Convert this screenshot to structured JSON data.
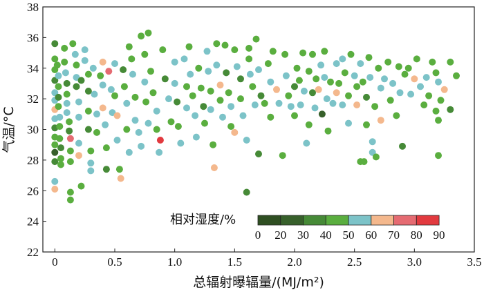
{
  "chart_data": {
    "type": "scatter",
    "xlabel": "总辐射曝辐量/(MJ/m²)",
    "ylabel": "气温/°C",
    "xlim": [
      -0.1,
      3.5
    ],
    "ylim": [
      22,
      38
    ],
    "xticks": [
      "0",
      "0.5",
      "1.0",
      "1.5",
      "2.0",
      "2.5",
      "3.0",
      "3.5"
    ],
    "xtick_values": [
      0,
      0.5,
      1.0,
      1.5,
      2.0,
      2.5,
      3.0,
      3.5
    ],
    "yticks": [
      "22",
      "24",
      "26",
      "28",
      "30",
      "32",
      "34",
      "36",
      "38"
    ],
    "ytick_values": [
      22,
      24,
      26,
      28,
      30,
      32,
      34,
      36,
      38
    ],
    "grid": false,
    "legend": {
      "title": "相对湿度/%",
      "position": "bottom-right",
      "boundaries": [
        "0",
        "20",
        "30",
        "40",
        "50",
        "60",
        "70",
        "80",
        "90"
      ],
      "colors": [
        "#2f4f22",
        "#37602b",
        "#468a37",
        "#5aae3f",
        "#7cc3c8",
        "#f4b88d",
        "#e56b72",
        "#e23a3f"
      ]
    },
    "class_colors": [
      "#2f4f22",
      "#37602b",
      "#468a37",
      "#5aae3f",
      "#7cc3c8",
      "#f4b88d",
      "#e56b72",
      "#e23a3f"
    ],
    "points": [
      [
        0.0,
        35.6,
        2
      ],
      [
        0.0,
        34.6,
        3
      ],
      [
        0.0,
        33.9,
        3
      ],
      [
        0.0,
        33.2,
        2
      ],
      [
        0.0,
        32.4,
        4
      ],
      [
        0.0,
        31.9,
        4
      ],
      [
        0.0,
        31.3,
        5
      ],
      [
        0.0,
        30.7,
        4
      ],
      [
        0.0,
        30.1,
        2
      ],
      [
        0.0,
        29.5,
        3
      ],
      [
        0.0,
        29.0,
        3
      ],
      [
        0.0,
        28.5,
        1
      ],
      [
        0.0,
        27.9,
        2
      ],
      [
        0.0,
        26.6,
        4
      ],
      [
        0.0,
        26.1,
        5
      ],
      [
        0.02,
        34.2,
        3
      ],
      [
        0.03,
        33.5,
        4
      ],
      [
        0.03,
        32.8,
        3
      ],
      [
        0.03,
        32.1,
        2
      ],
      [
        0.03,
        31.5,
        3
      ],
      [
        0.04,
        30.8,
        4
      ],
      [
        0.04,
        30.2,
        3
      ],
      [
        0.04,
        29.4,
        3
      ],
      [
        0.05,
        28.8,
        2
      ],
      [
        0.05,
        28.1,
        3
      ],
      [
        0.05,
        27.7,
        3
      ],
      [
        0.08,
        35.3,
        3
      ],
      [
        0.08,
        34.4,
        3
      ],
      [
        0.09,
        33.7,
        4
      ],
      [
        0.1,
        33.0,
        2
      ],
      [
        0.1,
        32.3,
        3
      ],
      [
        0.1,
        31.7,
        4
      ],
      [
        0.1,
        31.1,
        4
      ],
      [
        0.12,
        30.5,
        3
      ],
      [
        0.12,
        29.9,
        2
      ],
      [
        0.13,
        29.4,
        6
      ],
      [
        0.13,
        28.6,
        3
      ],
      [
        0.13,
        27.9,
        3
      ],
      [
        0.13,
        25.9,
        3
      ],
      [
        0.13,
        25.4,
        3
      ],
      [
        0.15,
        35.6,
        3
      ],
      [
        0.17,
        34.9,
        4
      ],
      [
        0.18,
        34.2,
        3
      ],
      [
        0.18,
        33.4,
        4
      ],
      [
        0.18,
        32.8,
        2
      ],
      [
        0.2,
        31.8,
        4
      ],
      [
        0.2,
        30.8,
        4
      ],
      [
        0.2,
        29.1,
        4
      ],
      [
        0.2,
        28.3,
        5
      ],
      [
        0.22,
        26.3,
        3
      ],
      [
        0.22,
        33.2,
        2
      ],
      [
        0.25,
        35.2,
        4
      ],
      [
        0.25,
        34.5,
        4
      ],
      [
        0.28,
        33.6,
        3
      ],
      [
        0.28,
        32.5,
        2
      ],
      [
        0.28,
        31.2,
        3
      ],
      [
        0.28,
        30.0,
        2
      ],
      [
        0.3,
        28.6,
        3
      ],
      [
        0.3,
        27.8,
        4
      ],
      [
        0.3,
        27.3,
        4
      ],
      [
        0.32,
        34.0,
        4
      ],
      [
        0.33,
        32.3,
        4
      ],
      [
        0.35,
        31.0,
        4
      ],
      [
        0.35,
        29.8,
        3
      ],
      [
        0.38,
        33.5,
        3
      ],
      [
        0.4,
        34.4,
        5
      ],
      [
        0.4,
        32.9,
        4
      ],
      [
        0.4,
        31.4,
        5
      ],
      [
        0.42,
        30.3,
        4
      ],
      [
        0.43,
        28.8,
        3
      ],
      [
        0.43,
        27.4,
        2
      ],
      [
        0.45,
        33.8,
        6
      ],
      [
        0.47,
        32.6,
        4
      ],
      [
        0.48,
        31.1,
        4
      ],
      [
        0.5,
        34.3,
        4
      ],
      [
        0.5,
        32.2,
        3
      ],
      [
        0.52,
        30.9,
        5
      ],
      [
        0.52,
        29.3,
        4
      ],
      [
        0.54,
        27.4,
        3
      ],
      [
        0.55,
        26.8,
        5
      ],
      [
        0.57,
        33.9,
        2
      ],
      [
        0.58,
        32.8,
        3
      ],
      [
        0.6,
        31.7,
        4
      ],
      [
        0.6,
        30.0,
        3
      ],
      [
        0.62,
        28.5,
        4
      ],
      [
        0.62,
        35.4,
        3
      ],
      [
        0.64,
        34.6,
        3
      ],
      [
        0.65,
        33.6,
        4
      ],
      [
        0.67,
        32.1,
        3
      ],
      [
        0.67,
        30.6,
        4
      ],
      [
        0.7,
        29.8,
        4
      ],
      [
        0.72,
        28.9,
        4
      ],
      [
        0.72,
        36.1,
        3
      ],
      [
        0.75,
        34.9,
        3
      ],
      [
        0.75,
        33.1,
        4
      ],
      [
        0.76,
        31.8,
        3
      ],
      [
        0.78,
        30.4,
        4
      ],
      [
        0.78,
        36.3,
        3
      ],
      [
        0.8,
        33.8,
        3
      ],
      [
        0.82,
        32.4,
        3
      ],
      [
        0.85,
        31.2,
        4
      ],
      [
        0.85,
        30.0,
        3
      ],
      [
        0.87,
        28.5,
        4
      ],
      [
        0.88,
        29.3,
        7
      ],
      [
        0.9,
        35.2,
        3
      ],
      [
        0.92,
        33.3,
        2
      ],
      [
        0.95,
        32.0,
        4
      ],
      [
        0.97,
        30.5,
        3
      ],
      [
        1.0,
        34.4,
        4
      ],
      [
        1.0,
        33.0,
        4
      ],
      [
        1.02,
        31.8,
        2
      ],
      [
        1.03,
        30.2,
        3
      ],
      [
        1.05,
        29.1,
        4
      ],
      [
        1.08,
        34.6,
        4
      ],
      [
        1.1,
        32.8,
        3
      ],
      [
        1.1,
        31.4,
        4
      ],
      [
        1.12,
        35.4,
        3
      ],
      [
        1.13,
        33.6,
        4
      ],
      [
        1.15,
        32.2,
        3
      ],
      [
        1.17,
        30.9,
        4
      ],
      [
        1.18,
        29.5,
        4
      ],
      [
        1.2,
        34.0,
        3
      ],
      [
        1.22,
        32.7,
        3
      ],
      [
        1.24,
        31.5,
        2
      ],
      [
        1.25,
        30.4,
        3
      ],
      [
        1.27,
        35.1,
        4
      ],
      [
        1.28,
        33.8,
        4
      ],
      [
        1.3,
        32.5,
        3
      ],
      [
        1.3,
        31.3,
        4
      ],
      [
        1.32,
        29.0,
        3
      ],
      [
        1.33,
        27.5,
        5
      ],
      [
        1.35,
        35.6,
        3
      ],
      [
        1.35,
        34.2,
        4
      ],
      [
        1.38,
        32.9,
        5
      ],
      [
        1.38,
        31.9,
        3
      ],
      [
        1.4,
        30.8,
        4
      ],
      [
        1.42,
        35.5,
        3
      ],
      [
        1.43,
        33.7,
        2
      ],
      [
        1.45,
        32.4,
        3
      ],
      [
        1.47,
        31.5,
        4
      ],
      [
        1.47,
        30.2,
        3
      ],
      [
        1.5,
        29.8,
        5
      ],
      [
        1.5,
        35.2,
        3
      ],
      [
        1.52,
        34.1,
        4
      ],
      [
        1.55,
        33.3,
        2
      ],
      [
        1.55,
        32.0,
        3
      ],
      [
        1.57,
        30.9,
        4
      ],
      [
        1.6,
        29.3,
        4
      ],
      [
        1.6,
        25.9,
        2
      ],
      [
        1.62,
        35.3,
        3
      ],
      [
        1.62,
        34.6,
        3
      ],
      [
        1.63,
        33.6,
        4
      ],
      [
        1.65,
        32.8,
        3
      ],
      [
        1.67,
        31.6,
        4
      ],
      [
        1.68,
        35.9,
        3
      ],
      [
        1.7,
        33.9,
        4
      ],
      [
        1.7,
        28.4,
        2
      ],
      [
        1.72,
        32.2,
        2
      ],
      [
        1.75,
        31.7,
        3
      ],
      [
        1.78,
        34.3,
        3
      ],
      [
        1.8,
        33.1,
        4
      ],
      [
        1.8,
        30.8,
        3
      ],
      [
        1.82,
        35.1,
        3
      ],
      [
        1.85,
        32.6,
        5
      ],
      [
        1.87,
        31.7,
        4
      ],
      [
        1.9,
        28.3,
        3
      ],
      [
        1.92,
        34.9,
        3
      ],
      [
        1.93,
        33.5,
        4
      ],
      [
        1.95,
        32.2,
        3
      ],
      [
        1.97,
        31.5,
        4
      ],
      [
        2.0,
        30.9,
        3
      ],
      [
        2.0,
        32.8,
        2
      ],
      [
        2.02,
        34.0,
        3
      ],
      [
        2.04,
        33.2,
        3
      ],
      [
        2.05,
        31.6,
        4
      ],
      [
        2.07,
        35.0,
        3
      ],
      [
        2.08,
        32.5,
        4
      ],
      [
        2.1,
        29.1,
        4
      ],
      [
        2.12,
        33.8,
        3
      ],
      [
        2.12,
        30.3,
        3
      ],
      [
        2.15,
        34.9,
        3
      ],
      [
        2.15,
        32.4,
        2
      ],
      [
        2.17,
        31.4,
        4
      ],
      [
        2.18,
        33.3,
        3
      ],
      [
        2.2,
        32.6,
        5
      ],
      [
        2.22,
        34.2,
        4
      ],
      [
        2.23,
        31.0,
        1
      ],
      [
        2.25,
        33.4,
        4
      ],
      [
        2.25,
        35.1,
        3
      ],
      [
        2.27,
        32.0,
        4
      ],
      [
        2.28,
        29.9,
        3
      ],
      [
        2.3,
        33.1,
        3
      ],
      [
        2.32,
        31.7,
        4
      ],
      [
        2.35,
        34.3,
        4
      ],
      [
        2.35,
        32.4,
        5
      ],
      [
        2.37,
        33.0,
        3
      ],
      [
        2.4,
        34.6,
        4
      ],
      [
        2.4,
        31.6,
        4
      ],
      [
        2.42,
        33.7,
        3
      ],
      [
        2.45,
        32.2,
        3
      ],
      [
        2.45,
        30.4,
        4
      ],
      [
        2.47,
        34.9,
        3
      ],
      [
        2.5,
        33.5,
        4
      ],
      [
        2.52,
        32.8,
        3
      ],
      [
        2.52,
        31.6,
        5
      ],
      [
        2.55,
        34.3,
        4
      ],
      [
        2.55,
        27.9,
        3
      ],
      [
        2.57,
        33.1,
        3
      ],
      [
        2.6,
        32.1,
        2
      ],
      [
        2.6,
        30.3,
        3
      ],
      [
        2.62,
        34.7,
        3
      ],
      [
        2.63,
        33.4,
        4
      ],
      [
        2.65,
        29.2,
        4
      ],
      [
        2.67,
        31.5,
        3
      ],
      [
        2.7,
        34.0,
        3
      ],
      [
        2.72,
        32.7,
        4
      ],
      [
        2.72,
        30.6,
        5
      ],
      [
        2.75,
        33.3,
        4
      ],
      [
        2.78,
        34.4,
        3
      ],
      [
        2.8,
        31.9,
        3
      ],
      [
        2.82,
        33.0,
        4
      ],
      [
        2.85,
        30.9,
        3
      ],
      [
        2.87,
        34.1,
        3
      ],
      [
        2.88,
        32.4,
        4
      ],
      [
        2.9,
        28.9,
        2
      ],
      [
        2.92,
        33.6,
        3
      ],
      [
        2.95,
        34.0,
        3
      ],
      [
        2.97,
        32.3,
        4
      ],
      [
        3.0,
        33.3,
        5
      ],
      [
        3.02,
        34.6,
        3
      ],
      [
        3.05,
        32.8,
        4
      ],
      [
        3.08,
        31.6,
        3
      ],
      [
        3.1,
        33.4,
        4
      ],
      [
        3.12,
        32.2,
        3
      ],
      [
        3.15,
        34.4,
        3
      ],
      [
        3.18,
        31.2,
        3
      ],
      [
        3.2,
        33.1,
        4
      ],
      [
        3.2,
        30.6,
        3
      ],
      [
        3.22,
        31.9,
        3
      ],
      [
        3.25,
        32.6,
        5
      ],
      [
        3.3,
        34.4,
        3
      ],
      [
        3.3,
        31.3,
        2
      ],
      [
        3.35,
        33.5,
        3
      ],
      [
        3.2,
        28.3,
        3
      ],
      [
        3.18,
        33.7,
        3
      ],
      [
        2.58,
        27.9,
        3
      ],
      [
        2.65,
        28.5,
        4
      ],
      [
        2.68,
        28.2,
        3
      ]
    ]
  }
}
